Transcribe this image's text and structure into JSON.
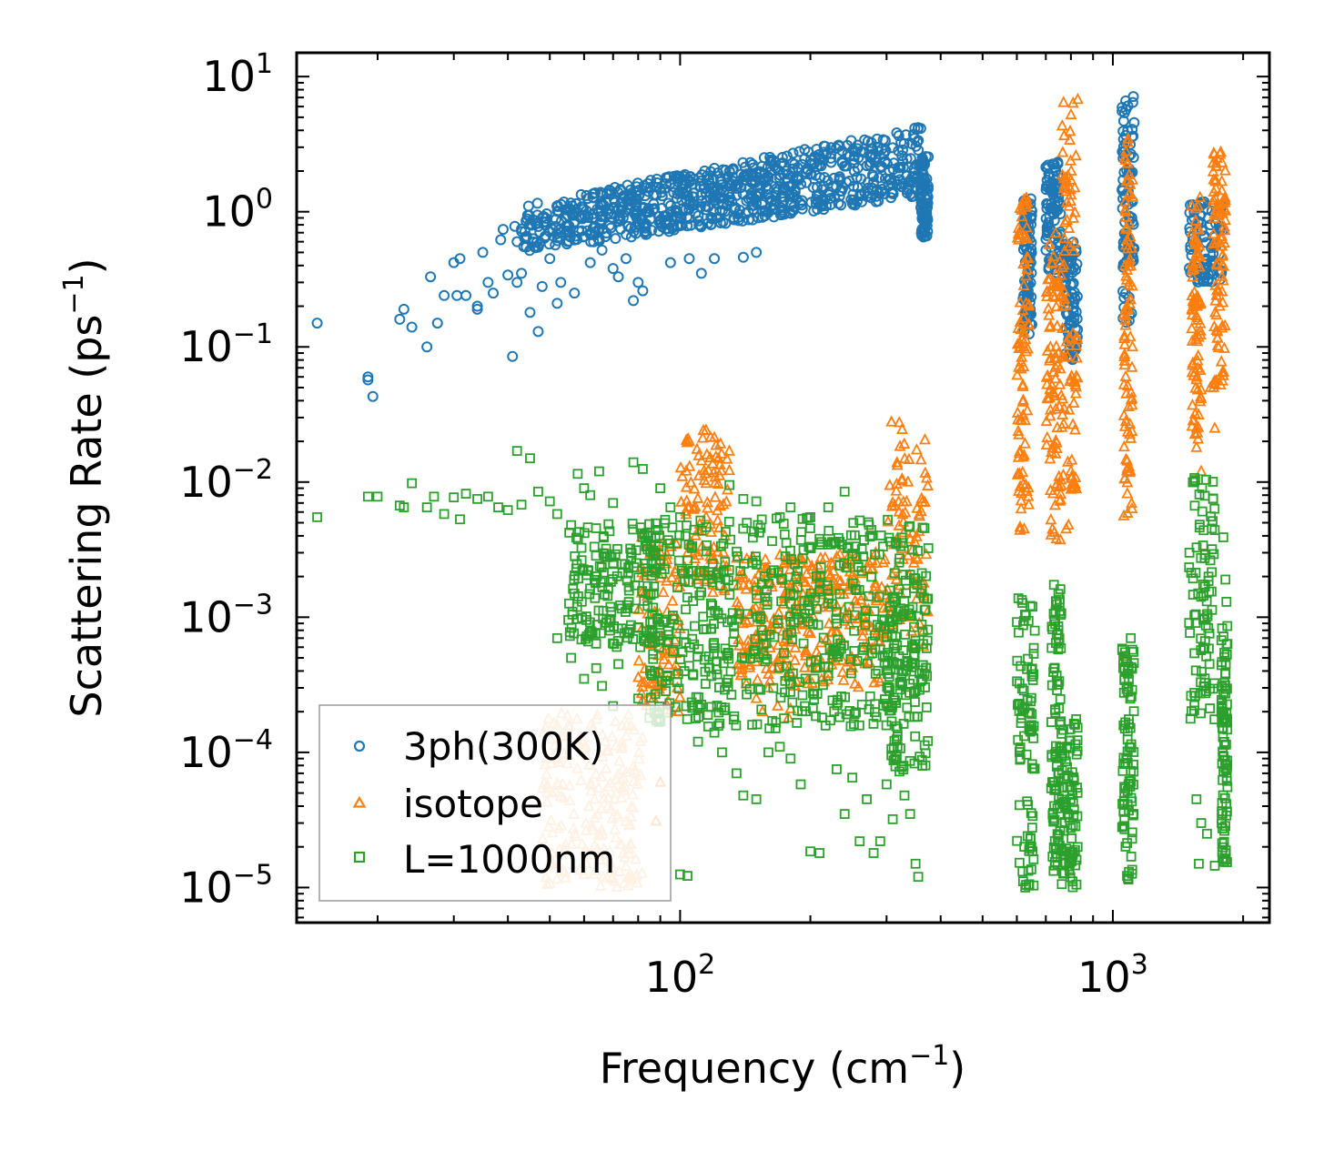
{
  "chart_data": {
    "type": "scatter",
    "xscale": "log",
    "yscale": "log",
    "xlim": [
      13,
      2300
    ],
    "ylim": [
      5.5e-06,
      15
    ],
    "xlabel_parts": {
      "main": "Frequency (cm",
      "sup": "−1",
      "end": ")"
    },
    "ylabel_parts": {
      "main": "Scattering Rate (ps",
      "sup": "−1",
      "end": ")"
    },
    "x_ticks": [
      {
        "value": 100,
        "base": "10",
        "exp": "2"
      },
      {
        "value": 1000,
        "base": "10",
        "exp": "3"
      }
    ],
    "y_ticks": [
      {
        "value": 10,
        "base": "10",
        "exp": "1"
      },
      {
        "value": 1,
        "base": "10",
        "exp": "0"
      },
      {
        "value": 0.1,
        "base": "10",
        "exp": "−1"
      },
      {
        "value": 0.01,
        "base": "10",
        "exp": "−2"
      },
      {
        "value": 0.001,
        "base": "10",
        "exp": "−3"
      },
      {
        "value": 0.0001,
        "base": "10",
        "exp": "−4"
      },
      {
        "value": 1e-05,
        "base": "10",
        "exp": "−5"
      }
    ],
    "legend_position": "lower-left",
    "series": [
      {
        "name": "3ph(300K)",
        "marker": "circle",
        "color": "#1f77b4",
        "sparse_points": [
          [
            14.5,
            0.15
          ],
          [
            19,
            0.06
          ],
          [
            19,
            0.057
          ],
          [
            19.5,
            0.043
          ],
          [
            22.5,
            0.16
          ],
          [
            23,
            0.19
          ],
          [
            24,
            0.14
          ],
          [
            26,
            0.1
          ],
          [
            26.5,
            0.33
          ],
          [
            27.5,
            0.15
          ],
          [
            28.5,
            0.24
          ],
          [
            30,
            0.42
          ],
          [
            30.5,
            0.24
          ],
          [
            31,
            0.45
          ],
          [
            32,
            0.24
          ],
          [
            34,
            0.19
          ],
          [
            34,
            0.2
          ],
          [
            35,
            0.5
          ],
          [
            36,
            0.3
          ],
          [
            37,
            0.25
          ],
          [
            38.5,
            0.62
          ],
          [
            39,
            0.74
          ],
          [
            40,
            0.34
          ],
          [
            41,
            0.085
          ],
          [
            41.5,
            0.78
          ],
          [
            42,
            0.3
          ],
          [
            42,
            0.6
          ],
          [
            43,
            0.35
          ],
          [
            44,
            0.65
          ],
          [
            45,
            0.18
          ],
          [
            46,
            0.55
          ],
          [
            47,
            0.13
          ],
          [
            48,
            0.28
          ],
          [
            49,
            0.8
          ],
          [
            50,
            0.45
          ],
          [
            52,
            0.21
          ],
          [
            53,
            0.3
          ],
          [
            55,
            0.6
          ],
          [
            57,
            0.25
          ],
          [
            62,
            0.42
          ],
          [
            66,
            0.52
          ],
          [
            70,
            0.38
          ],
          [
            72,
            0.33
          ],
          [
            75,
            0.45
          ],
          [
            78,
            0.22
          ],
          [
            80,
            0.3
          ],
          [
            82,
            0.26
          ],
          [
            95,
            0.42
          ],
          [
            105,
            0.45
          ],
          [
            112,
            0.35
          ],
          [
            120,
            0.45
          ],
          [
            140,
            0.46
          ],
          [
            150,
            0.5
          ]
        ],
        "clusters": [
          {
            "x": [
              43,
              360
            ],
            "y_low": [
              0.5,
              1.3
            ],
            "y_high": [
              1.1,
              4.3
            ]
          },
          {
            "x": [
              360,
              375
            ],
            "y": [
              0.65,
              2.6
            ]
          },
          {
            "x": [
              620,
              650
            ],
            "y": [
              0.12,
              1.3
            ]
          },
          {
            "x": [
              700,
              760
            ],
            "y": [
              0.35,
              2.4
            ]
          },
          {
            "x": [
              770,
              830
            ],
            "y": [
              0.08,
              0.6
            ]
          },
          {
            "x": [
              1050,
              1120
            ],
            "y": [
              0.15,
              7.5
            ]
          },
          {
            "x": [
              1500,
              1800
            ],
            "y": [
              0.3,
              1.2
            ]
          }
        ]
      },
      {
        "name": "isotope",
        "marker": "triangle",
        "color": "#ff7f0e",
        "sparse_points": [
          [
            88,
            3.1e-05
          ],
          [
            90,
            6e-05
          ],
          [
            150,
            0.00025
          ],
          [
            155,
            0.0002
          ],
          [
            160,
            0.0003
          ],
          [
            168,
            0.00022
          ],
          [
            178,
            0.00018
          ],
          [
            180,
            0.00021
          ],
          [
            780,
            0.0045
          ],
          [
            790,
            0.0048
          ],
          [
            1080,
            0.0082
          ],
          [
            1090,
            0.013
          ],
          [
            1100,
            0.021
          ],
          [
            1560,
            0.018
          ],
          [
            1600,
            0.012
          ],
          [
            1680,
            0.05
          ],
          [
            1720,
            0.025
          ]
        ],
        "clusters": [
          {
            "x": [
              48,
              82
            ],
            "y": [
              1e-05,
              0.0002
            ],
            "light": true
          },
          {
            "x": [
              80,
              100
            ],
            "y": [
              0.0002,
              0.004
            ]
          },
          {
            "x": [
              100,
              130
            ],
            "y": [
              0.0015,
              0.025
            ]
          },
          {
            "x": [
              135,
              300
            ],
            "y": [
              0.0003,
              0.003
            ]
          },
          {
            "x": [
              300,
              375
            ],
            "y": [
              0.0006,
              0.028
            ]
          },
          {
            "x": [
              600,
              640
            ],
            "y": [
              0.004,
              1.3
            ]
          },
          {
            "x": [
              700,
              760
            ],
            "y": [
              0.003,
              0.8
            ]
          },
          {
            "x": [
              760,
              830
            ],
            "y": [
              0.008,
              7
            ]
          },
          {
            "x": [
              1060,
              1110
            ],
            "y": [
              0.005,
              3.5
            ]
          },
          {
            "x": [
              1520,
              1600
            ],
            "y": [
              0.02,
              1.3
            ]
          },
          {
            "x": [
              1700,
              1820
            ],
            "y": [
              0.05,
              3.2
            ]
          }
        ]
      },
      {
        "name": "L=1000nm",
        "marker": "square",
        "color": "#2ca02c",
        "sparse_points": [
          [
            14.5,
            0.0055
          ],
          [
            19,
            0.0078
          ],
          [
            20,
            0.0078
          ],
          [
            22.5,
            0.0067
          ],
          [
            23,
            0.0065
          ],
          [
            24,
            0.0098
          ],
          [
            26,
            0.0065
          ],
          [
            27,
            0.0078
          ],
          [
            28.5,
            0.0058
          ],
          [
            30,
            0.0077
          ],
          [
            31,
            0.0053
          ],
          [
            32,
            0.0082
          ],
          [
            34,
            0.0075
          ],
          [
            36,
            0.0078
          ],
          [
            38,
            0.0065
          ],
          [
            40,
            0.0062
          ],
          [
            42,
            0.017
          ],
          [
            43,
            0.0068
          ],
          [
            45,
            0.015
          ],
          [
            47,
            0.0085
          ],
          [
            50,
            0.0072
          ],
          [
            52,
            0.0058
          ],
          [
            56,
            0.0048
          ],
          [
            58,
            0.0115
          ],
          [
            60,
            0.009
          ],
          [
            62,
            0.008
          ],
          [
            65,
            0.012
          ],
          [
            70,
            0.007
          ],
          [
            78,
            0.014
          ],
          [
            82,
            0.0125
          ],
          [
            90,
            0.009
          ],
          [
            95,
            0.0065
          ],
          [
            100,
            0.0055
          ],
          [
            130,
            0.0095
          ],
          [
            140,
            0.0075
          ],
          [
            150,
            0.0072
          ],
          [
            170,
            0.0055
          ],
          [
            180,
            0.0065
          ],
          [
            200,
            0.0055
          ],
          [
            220,
            0.0065
          ],
          [
            240,
            0.0085
          ],
          [
            260,
            0.0052
          ],
          [
            52,
            0.0007
          ],
          [
            56,
            0.0005
          ],
          [
            60,
            0.00035
          ],
          [
            64,
            0.00042
          ],
          [
            66,
            0.00031
          ],
          [
            70,
            0.00022
          ],
          [
            72,
            0.00045
          ],
          [
            80,
            0.00025
          ],
          [
            85,
            0.00018
          ],
          [
            100,
            1.25e-05
          ],
          [
            104,
            1.22e-05
          ],
          [
            110,
            0.00012
          ],
          [
            120,
            0.00014
          ],
          [
            125,
            0.0001
          ],
          [
            135,
            7e-05
          ],
          [
            140,
            4.8e-05
          ],
          [
            150,
            4.5e-05
          ],
          [
            160,
            0.0001
          ],
          [
            170,
            0.00011
          ],
          [
            180,
            9e-05
          ],
          [
            190,
            5.8e-05
          ],
          [
            200,
            1.85e-05
          ],
          [
            210,
            1.8e-05
          ],
          [
            230,
            7.5e-05
          ],
          [
            240,
            3.5e-05
          ],
          [
            250,
            6.5e-05
          ],
          [
            260,
            2.2e-05
          ],
          [
            270,
            4.5e-05
          ],
          [
            280,
            1.8e-05
          ],
          [
            290,
            2.2e-05
          ],
          [
            300,
            5.8e-05
          ],
          [
            310,
            3.2e-05
          ],
          [
            330,
            4.8e-05
          ],
          [
            340,
            3.5e-05
          ],
          [
            350,
            1.5e-05
          ],
          [
            355,
            1.2e-05
          ],
          [
            1100,
            0.0007
          ],
          [
            1560,
            4.5e-05
          ],
          [
            1580,
            1.5e-05
          ],
          [
            1600,
            3e-05
          ],
          [
            1650,
            2.5e-05
          ],
          [
            1720,
            1.45e-05
          ],
          [
            1800,
            0.0039
          ],
          [
            1820,
            0.0019
          ],
          [
            1830,
            0.0013
          ]
        ],
        "clusters": [
          {
            "x": [
              55,
              90
            ],
            "y": [
              0.0006,
              0.005
            ]
          },
          {
            "x": [
              85,
              375
            ],
            "y": [
              0.00015,
              0.0055
            ]
          },
          {
            "x": [
              300,
              375
            ],
            "y": [
              7e-05,
              0.002
            ]
          },
          {
            "x": [
              600,
              660
            ],
            "y": [
              1e-05,
              0.0014
            ]
          },
          {
            "x": [
              720,
              760
            ],
            "y": [
              1.2e-05,
              0.0018
            ]
          },
          {
            "x": [
              760,
              830
            ],
            "y": [
              1e-05,
              0.00018
            ]
          },
          {
            "x": [
              1050,
              1120
            ],
            "y": [
              1e-05,
              0.0006
            ]
          },
          {
            "x": [
              1500,
              1720
            ],
            "y": [
              0.00015,
              0.011
            ]
          },
          {
            "x": [
              1780,
              1840
            ],
            "y": [
              1.5e-05,
              0.0009
            ]
          }
        ]
      }
    ]
  }
}
